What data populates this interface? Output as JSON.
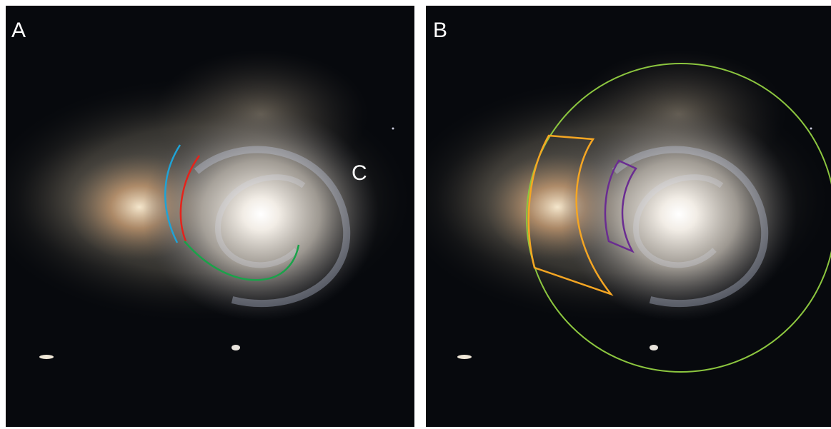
{
  "panels": [
    {
      "label": "A",
      "annotations": [
        {
          "label": "C"
        }
      ]
    },
    {
      "label": "B"
    }
  ]
}
